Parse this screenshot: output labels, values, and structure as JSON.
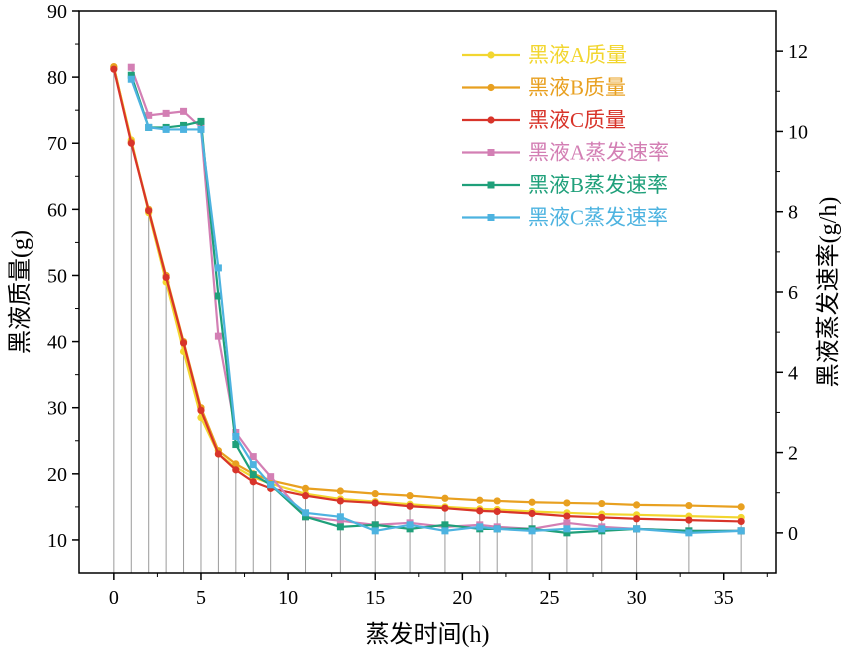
{
  "chart_data": {
    "type": "line",
    "xlabel": "蒸发时间(h)",
    "ylabel": "黑液质量(g)",
    "y2label": "黑液蒸发速率(g/h)",
    "xlim": [
      -2,
      38
    ],
    "ylim": [
      5,
      90
    ],
    "y2lim": [
      -1,
      13
    ],
    "x_ticks": [
      0,
      5,
      10,
      15,
      20,
      25,
      30,
      35
    ],
    "y_ticks": [
      10,
      20,
      30,
      40,
      50,
      60,
      70,
      80,
      90
    ],
    "y2_ticks": [
      0,
      2,
      4,
      6,
      8,
      10,
      12
    ],
    "legend_position": "top-right",
    "droplines_x": [
      0,
      1,
      2,
      3,
      4,
      5,
      6,
      7,
      8,
      9,
      11,
      13,
      15,
      17,
      19,
      21,
      22,
      24,
      26,
      28,
      30,
      33,
      36
    ],
    "series": [
      {
        "name": "黑液A质量",
        "color": "#f2d630",
        "axis": "left",
        "marker": "circle",
        "x": [
          0,
          1,
          2,
          3,
          4,
          5,
          6,
          7,
          8,
          9,
          11,
          13,
          15,
          17,
          19,
          21,
          22,
          24,
          26,
          28,
          30,
          33,
          36
        ],
        "values": [
          81.5,
          70.5,
          59.5,
          49,
          38.5,
          28.5,
          23,
          21,
          19.5,
          18.5,
          17,
          16.2,
          15.8,
          15.4,
          15,
          14.7,
          14.6,
          14.3,
          14.1,
          13.9,
          13.8,
          13.6,
          13.4
        ]
      },
      {
        "name": "黑液B质量",
        "color": "#e8a020",
        "axis": "left",
        "marker": "circle",
        "x": [
          0,
          1,
          2,
          3,
          4,
          5,
          6,
          7,
          8,
          9,
          11,
          13,
          15,
          17,
          19,
          21,
          22,
          24,
          26,
          28,
          30,
          33,
          36
        ],
        "values": [
          81.6,
          70.2,
          60,
          50,
          40,
          30,
          23.5,
          21.5,
          20,
          19,
          17.8,
          17.4,
          17,
          16.7,
          16.3,
          16,
          15.9,
          15.7,
          15.6,
          15.5,
          15.3,
          15.2,
          15
        ]
      },
      {
        "name": "黑液C质量",
        "color": "#d8342a",
        "axis": "left",
        "marker": "circle",
        "x": [
          0,
          1,
          2,
          3,
          4,
          5,
          6,
          7,
          8,
          9,
          11,
          13,
          15,
          17,
          19,
          21,
          22,
          24,
          26,
          28,
          30,
          33,
          36
        ],
        "values": [
          81.2,
          70,
          59.8,
          49.7,
          39.8,
          29.6,
          23,
          20.6,
          18.8,
          17.8,
          16.7,
          15.9,
          15.6,
          15.1,
          14.8,
          14.4,
          14.3,
          14,
          13.6,
          13.4,
          13.2,
          13,
          12.8
        ]
      },
      {
        "name": "黑液A蒸发速率",
        "color": "#d37fb4",
        "axis": "right",
        "marker": "square",
        "x": [
          1,
          2,
          3,
          4,
          5,
          6,
          7,
          8,
          9,
          11,
          13,
          15,
          17,
          19,
          21,
          22,
          24,
          26,
          28,
          30,
          33,
          36
        ],
        "values": [
          11.6,
          10.4,
          10.45,
          10.5,
          10.1,
          4.9,
          2.5,
          1.9,
          1.4,
          0.4,
          0.3,
          0.2,
          0.25,
          0.15,
          0.2,
          0.15,
          0.1,
          0.25,
          0.15,
          0.1,
          0.05,
          0.05
        ]
      },
      {
        "name": "黑液B蒸发速率",
        "color": "#1fa07a",
        "axis": "right",
        "marker": "square",
        "x": [
          1,
          2,
          3,
          4,
          5,
          6,
          7,
          8,
          9,
          11,
          13,
          15,
          17,
          19,
          21,
          22,
          24,
          26,
          28,
          30,
          33,
          36
        ],
        "values": [
          11.4,
          10.1,
          10.1,
          10.15,
          10.25,
          5.9,
          2.2,
          1.45,
          1.2,
          0.4,
          0.15,
          0.2,
          0.1,
          0.2,
          0.1,
          0.1,
          0.1,
          0.0,
          0.05,
          0.1,
          0.05,
          0.05
        ]
      },
      {
        "name": "黑液C蒸发速率",
        "color": "#4db3e0",
        "axis": "right",
        "marker": "square",
        "x": [
          1,
          2,
          3,
          4,
          5,
          6,
          7,
          8,
          9,
          11,
          13,
          15,
          17,
          19,
          21,
          22,
          24,
          26,
          28,
          30,
          33,
          36
        ],
        "values": [
          11.3,
          10.1,
          10.05,
          10.05,
          10.05,
          6.6,
          2.4,
          1.7,
          1.2,
          0.5,
          0.4,
          0.05,
          0.2,
          0.05,
          0.15,
          0.1,
          0.05,
          0.1,
          0.1,
          0.1,
          0.0,
          0.05
        ]
      }
    ]
  }
}
